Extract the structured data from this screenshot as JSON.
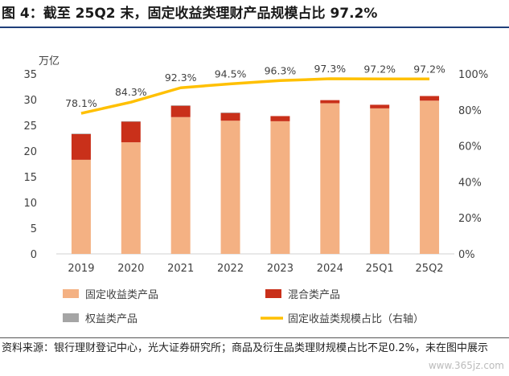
{
  "title": "图 4：截至 25Q2 末，固定收益类理财产品规模占比 97.2%",
  "source": "资料来源：银行理财登记中心，光大证券研究所；商品及衍生品类理财规模占比不足0.2%，未在图中展示",
  "watermark": "www.365jz.com",
  "colors": {
    "fixed_income": "#f4b183",
    "mixed": "#c9301a",
    "equity": "#a5a5a5",
    "share_line": "#ffc000",
    "axis": "#d0d0d0",
    "text": "#404040"
  },
  "chart_data": {
    "type": "bar",
    "stacked": true,
    "categories": [
      "2019",
      "2020",
      "2021",
      "2022",
      "2023",
      "2024",
      "25Q1",
      "25Q2"
    ],
    "ylabel": "万亿",
    "ylim": [
      0,
      35
    ],
    "yticks": [
      0,
      5,
      10,
      15,
      20,
      25,
      30,
      35
    ],
    "y2lim": [
      0,
      100
    ],
    "y2ticks": [
      "0%",
      "20%",
      "40%",
      "60%",
      "80%",
      "100%"
    ],
    "series": [
      {
        "name": "固定收益类产品",
        "kind": "bar",
        "color": "#f4b183",
        "values": [
          18.3,
          21.7,
          26.6,
          25.9,
          25.8,
          29.3,
          28.3,
          29.8
        ]
      },
      {
        "name": "混合类产品",
        "kind": "bar",
        "color": "#c9301a",
        "values": [
          5.0,
          4.0,
          2.2,
          1.5,
          1.0,
          0.6,
          0.7,
          0.9
        ]
      },
      {
        "name": "权益类产品",
        "kind": "bar",
        "color": "#a5a5a5",
        "values": [
          0.1,
          0.1,
          0.1,
          0.1,
          0.0,
          0.0,
          0.0,
          0.0
        ]
      },
      {
        "name": "固定收益类规模占比（右轴）",
        "kind": "line",
        "axis": "right",
        "color": "#ffc000",
        "values": [
          78.1,
          84.3,
          92.3,
          94.5,
          96.3,
          97.3,
          97.2,
          97.2
        ],
        "labels": [
          "78.1%",
          "84.3%",
          "92.3%",
          "94.5%",
          "96.3%",
          "97.3%",
          "97.2%",
          "97.2%"
        ]
      }
    ],
    "legend": [
      {
        "label": "固定收益类产品",
        "kind": "box",
        "color": "#f4b183"
      },
      {
        "label": "混合类产品",
        "kind": "box",
        "color": "#c9301a"
      },
      {
        "label": "权益类产品",
        "kind": "box",
        "color": "#a5a5a5"
      },
      {
        "label": "固定收益类规模占比（右轴）",
        "kind": "line",
        "color": "#ffc000"
      }
    ],
    "legend_position": "bottom",
    "grid": false
  }
}
